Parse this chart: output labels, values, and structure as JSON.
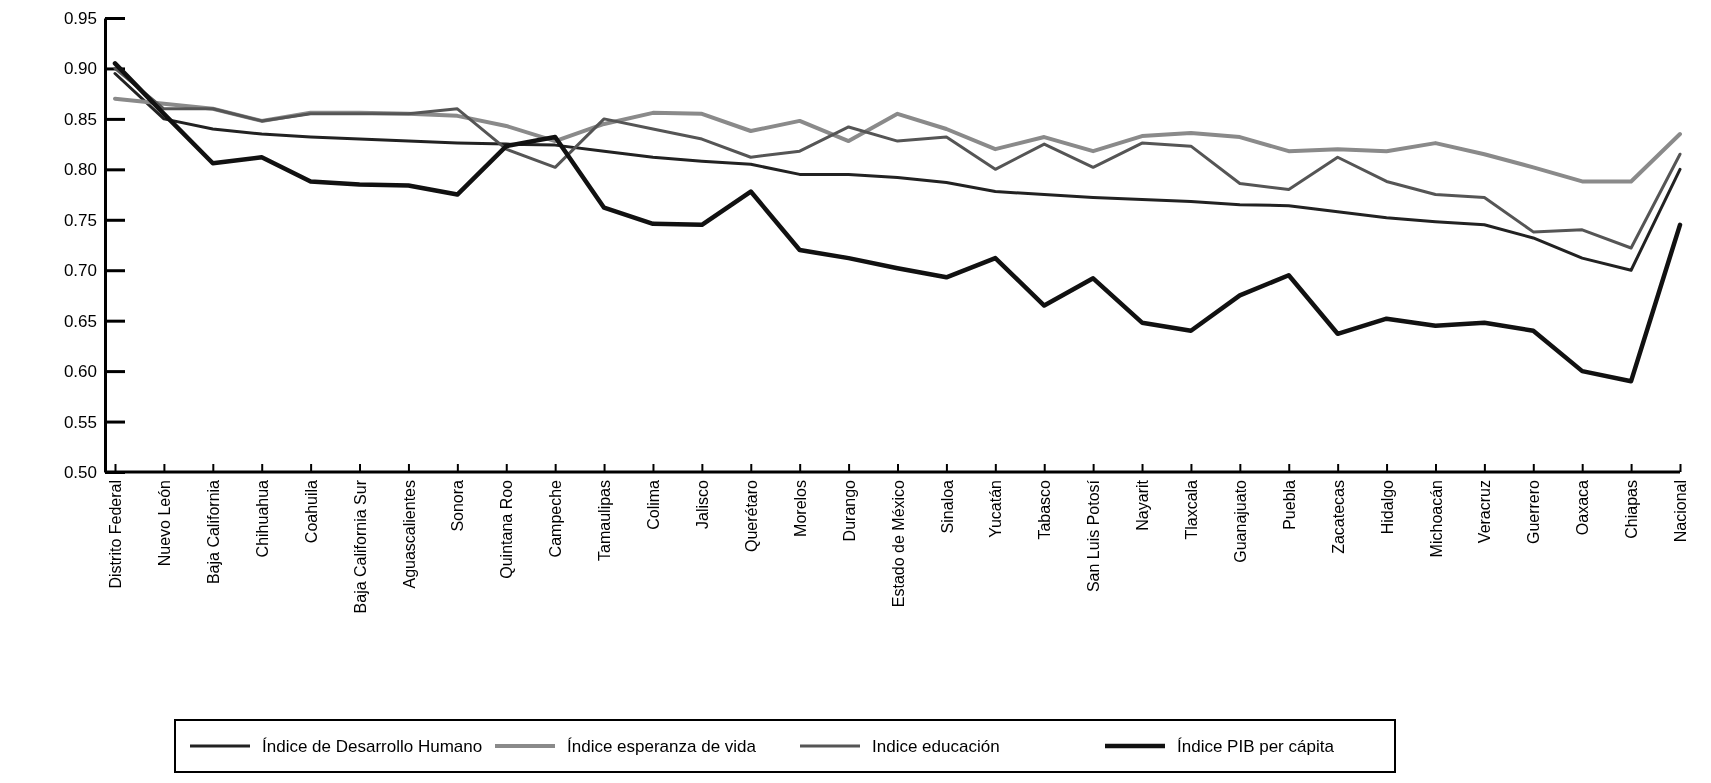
{
  "chart_data": {
    "type": "line",
    "categories": [
      "Distrito Federal",
      "Nuevo León",
      "Baja California",
      "Chihuahua",
      "Coahuila",
      "Baja California Sur",
      "Aguascalientes",
      "Sonora",
      "Quintana Roo",
      "Campeche",
      "Tamaulipas",
      "Colima",
      "Jalisco",
      "Querétaro",
      "Morelos",
      "Durango",
      "Estado de México",
      "Sinaloa",
      "Yucatán",
      "Tabasco",
      "San Luis Potosí",
      "Nayarit",
      "Tlaxcala",
      "Guanajuato",
      "Puebla",
      "Zacatecas",
      "Hidalgo",
      "Michoacán",
      "Veracruz",
      "Guerrero",
      "Oaxaca",
      "Chiapas",
      "Nacional"
    ],
    "series": [
      {
        "name": "Índice de Desarrollo Humano",
        "color": "#222222",
        "values": [
          0.895,
          0.85,
          0.84,
          0.835,
          0.832,
          0.83,
          0.828,
          0.826,
          0.825,
          0.824,
          0.818,
          0.812,
          0.808,
          0.805,
          0.795,
          0.795,
          0.792,
          0.787,
          0.778,
          0.775,
          0.772,
          0.77,
          0.768,
          0.765,
          0.764,
          0.758,
          0.752,
          0.748,
          0.745,
          0.732,
          0.712,
          0.7,
          0.8
        ]
      },
      {
        "name": "Índice esperanza de vida",
        "color": "#8a8a8a",
        "values": [
          0.87,
          0.865,
          0.86,
          0.848,
          0.856,
          0.856,
          0.855,
          0.853,
          0.843,
          0.828,
          0.845,
          0.856,
          0.855,
          0.838,
          0.848,
          0.828,
          0.855,
          0.84,
          0.82,
          0.832,
          0.818,
          0.833,
          0.836,
          0.832,
          0.818,
          0.82,
          0.818,
          0.826,
          0.815,
          0.802,
          0.788,
          0.788,
          0.835
        ]
      },
      {
        "name": "Indice educación",
        "color": "#555555",
        "values": [
          0.9,
          0.86,
          0.86,
          0.848,
          0.855,
          0.855,
          0.855,
          0.86,
          0.82,
          0.802,
          0.85,
          0.84,
          0.83,
          0.812,
          0.818,
          0.842,
          0.828,
          0.832,
          0.8,
          0.825,
          0.802,
          0.826,
          0.823,
          0.786,
          0.78,
          0.812,
          0.788,
          0.775,
          0.772,
          0.738,
          0.74,
          0.722,
          0.815
        ]
      },
      {
        "name": "Índice PIB per cápita",
        "color": "#111111",
        "values": [
          0.905,
          0.855,
          0.806,
          0.812,
          0.788,
          0.785,
          0.784,
          0.775,
          0.823,
          0.832,
          0.762,
          0.746,
          0.745,
          0.778,
          0.72,
          0.712,
          0.702,
          0.693,
          0.712,
          0.665,
          0.692,
          0.648,
          0.64,
          0.675,
          0.695,
          0.637,
          0.652,
          0.645,
          0.648,
          0.64,
          0.6,
          0.59,
          0.745
        ]
      }
    ],
    "ylim": [
      0.5,
      0.95
    ],
    "yticks": [
      {
        "value": 0.5,
        "label": "0.50"
      },
      {
        "value": 0.55,
        "label": "0.55"
      },
      {
        "value": 0.6,
        "label": "0.60"
      },
      {
        "value": 0.65,
        "label": "0.65"
      },
      {
        "value": 0.7,
        "label": "0.70"
      },
      {
        "value": 0.75,
        "label": "0.75"
      },
      {
        "value": 0.8,
        "label": "0.80"
      },
      {
        "value": 0.85,
        "label": "0.85"
      },
      {
        "value": 0.9,
        "label": "0.90"
      },
      {
        "value": 0.95,
        "label": "0.95"
      }
    ],
    "legend": "bottom",
    "grid": false,
    "marker": "none",
    "line_style": "solid"
  }
}
